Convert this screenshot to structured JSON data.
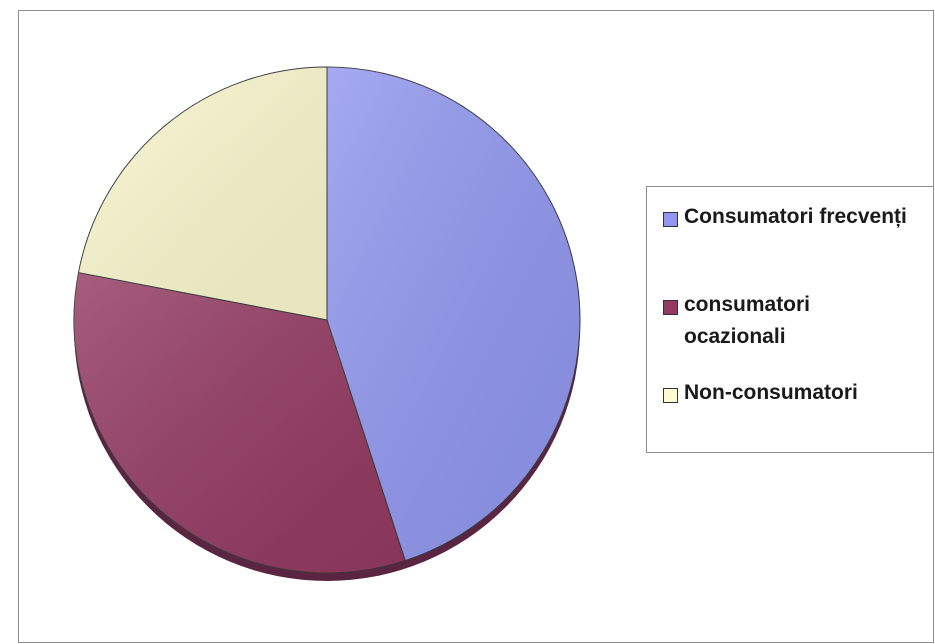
{
  "chart_data": {
    "type": "pie",
    "title": "",
    "slices": [
      {
        "label": "Consumatori frecvenți",
        "value": 45,
        "color": "#9197f0"
      },
      {
        "label": "consumatori ocazionali",
        "value": 33,
        "color": "#943a62"
      },
      {
        "label": "Non-consumatori",
        "value": 22,
        "color": "#fcfad0"
      }
    ],
    "legend_position": "right"
  },
  "legend": {
    "items": [
      {
        "label": "Consumatori frecvenți",
        "color": "#9197f0"
      },
      {
        "label": "consumatori ocazionali",
        "color": "#943a62"
      },
      {
        "label": "Non-consumatori",
        "color": "#fcfad0"
      }
    ]
  }
}
